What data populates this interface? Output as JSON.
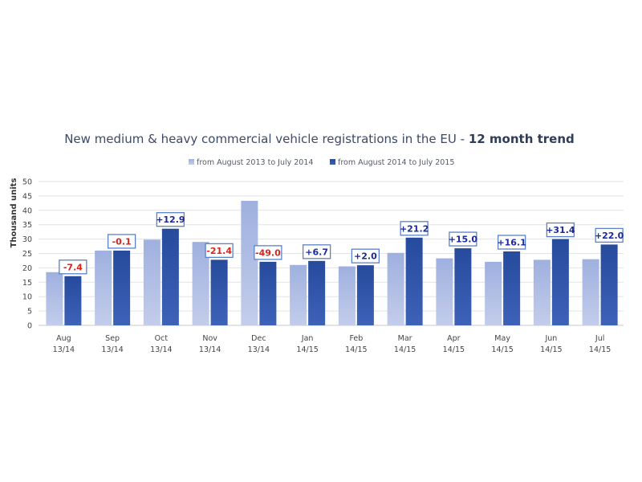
{
  "chart_data": {
    "type": "bar",
    "title": "New medium & heavy commercial vehicle registrations in the EU - ",
    "title_emphasis": "12 month trend",
    "ylabel": "Thousand units",
    "ylim": [
      0,
      50
    ],
    "yticks": [
      0,
      5,
      10,
      15,
      20,
      25,
      30,
      35,
      40,
      45,
      50
    ],
    "grid": true,
    "legend_position": "top-center",
    "categories": [
      {
        "month": "Aug",
        "period": "13/14"
      },
      {
        "month": "Sep",
        "period": "13/14"
      },
      {
        "month": "Oct",
        "period": "13/14"
      },
      {
        "month": "Nov",
        "period": "13/14"
      },
      {
        "month": "Dec",
        "period": "13/14"
      },
      {
        "month": "Jan",
        "period": "14/15"
      },
      {
        "month": "Feb",
        "period": "14/15"
      },
      {
        "month": "Mar",
        "period": "14/15"
      },
      {
        "month": "Apr",
        "period": "14/15"
      },
      {
        "month": "May",
        "period": "14/15"
      },
      {
        "month": "Jun",
        "period": "14/15"
      },
      {
        "month": "Jul",
        "period": "14/15"
      }
    ],
    "series": [
      {
        "name": "from August 2013 to July 2014",
        "color": "#a9b8e0",
        "values": [
          18.5,
          26.0,
          29.8,
          29.0,
          43.3,
          21.0,
          20.5,
          25.2,
          23.3,
          22.1,
          22.8,
          23.0
        ]
      },
      {
        "name": "from August 2014 to July 2015",
        "color": "#2e4f9e",
        "values": [
          17.1,
          26.0,
          33.6,
          22.8,
          22.1,
          22.4,
          20.9,
          30.5,
          26.8,
          25.7,
          30.0,
          28.1
        ]
      }
    ],
    "change_labels": [
      "-7.4",
      "-0.1",
      "+12.9",
      "-21.4",
      "-49.0",
      "+6.7",
      "+2.0",
      "+21.2",
      "+15.0",
      "+16.1",
      "+31.4",
      "+22.0"
    ],
    "positive_color": "#1a2a9c",
    "negative_color": "#e0201a"
  }
}
